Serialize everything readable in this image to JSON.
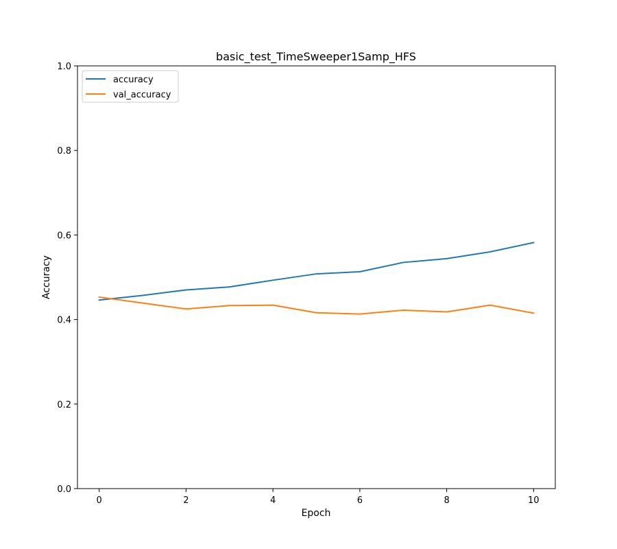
{
  "chart_data": {
    "type": "line",
    "title": "basic_test_TimeSweeper1Samp_HFS",
    "xlabel": "Epoch",
    "ylabel": "Accuracy",
    "xlim": [
      -0.5,
      10.5
    ],
    "ylim": [
      0.0,
      1.0
    ],
    "x_ticks": [
      0,
      2,
      4,
      6,
      8,
      10
    ],
    "y_ticks": [
      0.0,
      0.2,
      0.4,
      0.6,
      0.8,
      1.0
    ],
    "x_tick_labels": [
      "0",
      "2",
      "4",
      "6",
      "8",
      "10"
    ],
    "y_tick_labels": [
      "0.0",
      "0.2",
      "0.4",
      "0.6",
      "0.8",
      "1.0"
    ],
    "grid": false,
    "legend_position": "top-left",
    "x": [
      0,
      1,
      2,
      3,
      4,
      5,
      6,
      7,
      8,
      9,
      10
    ],
    "series": [
      {
        "name": "accuracy",
        "color": "#1f77b4",
        "values": [
          0.446,
          0.457,
          0.47,
          0.477,
          0.493,
          0.508,
          0.513,
          0.535,
          0.544,
          0.56,
          0.582
        ]
      },
      {
        "name": "val_accuracy",
        "color": "#ff7f0e",
        "values": [
          0.453,
          0.439,
          0.425,
          0.433,
          0.434,
          0.416,
          0.413,
          0.422,
          0.418,
          0.434,
          0.415
        ]
      }
    ]
  }
}
